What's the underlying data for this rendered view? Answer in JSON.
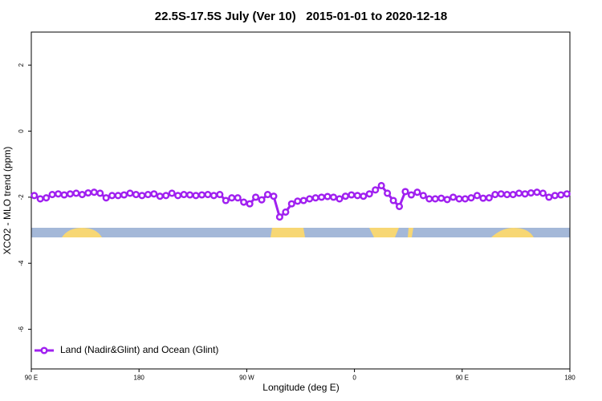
{
  "chart_data": {
    "type": "line",
    "title": "22.5S-17.5S July (Ver 10)   2015-01-01 to 2020-12-18",
    "x_label": "Longitude (deg E)",
    "y_label": "XCO2 - MLO trend (ppm)",
    "xlim": [
      90,
      540
    ],
    "ylim": [
      -7.2,
      3.0
    ],
    "xticks": [
      {
        "value": 90,
        "label": "90 E"
      },
      {
        "value": 180,
        "label": "180"
      },
      {
        "value": 270,
        "label": "90 W"
      },
      {
        "value": 360,
        "label": "0"
      },
      {
        "value": 450,
        "label": "90 E"
      },
      {
        "value": 540,
        "label": "180"
      }
    ],
    "yticks": [
      -6,
      -4,
      -2,
      0,
      2
    ],
    "legend": "bottom-left",
    "x": [
      92.5,
      97.5,
      102.5,
      107.5,
      112.5,
      117.5,
      122.5,
      127.5,
      132.5,
      137.5,
      142.5,
      147.5,
      152.5,
      157.5,
      162.5,
      167.5,
      172.5,
      177.5,
      182.5,
      187.5,
      192.5,
      197.5,
      202.5,
      207.5,
      212.5,
      217.5,
      222.5,
      227.5,
      232.5,
      237.5,
      242.5,
      247.5,
      252.5,
      257.5,
      262.5,
      267.5,
      272.5,
      277.5,
      282.5,
      287.5,
      292.5,
      297.5,
      302.5,
      307.5,
      312.5,
      317.5,
      322.5,
      327.5,
      332.5,
      337.5,
      342.5,
      347.5,
      352.5,
      357.5,
      362.5,
      367.5,
      372.5,
      377.5,
      382.5,
      387.5,
      392.5,
      397.5,
      402.5,
      407.5,
      412.5,
      417.5,
      422.5,
      427.5,
      432.5,
      437.5,
      442.5,
      447.5,
      452.5,
      457.5,
      462.5,
      467.5,
      472.5,
      477.5,
      482.5,
      487.5,
      492.5,
      497.5,
      502.5,
      507.5,
      512.5,
      517.5,
      522.5,
      527.5,
      532.5,
      537.5
    ],
    "series": [
      {
        "name": "Land (Nadir&Glint) and Ocean (Glint)",
        "color": "#a020f0",
        "values": [
          -1.95,
          -2.05,
          -2.02,
          -1.92,
          -1.9,
          -1.93,
          -1.9,
          -1.88,
          -1.92,
          -1.87,
          -1.85,
          -1.88,
          -2.02,
          -1.95,
          -1.95,
          -1.93,
          -1.88,
          -1.92,
          -1.95,
          -1.92,
          -1.9,
          -1.97,
          -1.95,
          -1.88,
          -1.95,
          -1.92,
          -1.93,
          -1.95,
          -1.93,
          -1.92,
          -1.95,
          -1.92,
          -2.1,
          -2.02,
          -2.02,
          -2.15,
          -2.2,
          -2.0,
          -2.08,
          -1.92,
          -1.97,
          -2.6,
          -2.45,
          -2.2,
          -2.12,
          -2.1,
          -2.05,
          -2.02,
          -2.0,
          -1.98,
          -2.0,
          -2.05,
          -1.97,
          -1.93,
          -1.95,
          -1.97,
          -1.9,
          -1.78,
          -1.65,
          -1.88,
          -2.1,
          -2.28,
          -1.83,
          -1.93,
          -1.85,
          -1.95,
          -2.05,
          -2.05,
          -2.03,
          -2.07,
          -2.0,
          -2.05,
          -2.05,
          -2.02,
          -1.95,
          -2.03,
          -2.02,
          -1.92,
          -1.9,
          -1.92,
          -1.92,
          -1.88,
          -1.9,
          -1.87,
          -1.85,
          -1.88,
          -2.0,
          -1.95,
          -1.93,
          -1.9
        ]
      }
    ]
  }
}
